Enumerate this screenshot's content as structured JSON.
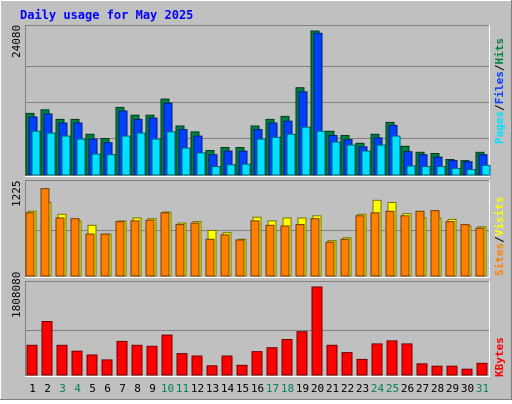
{
  "colors": {
    "background": "#c0c0c0",
    "title": "#0000ff",
    "hits": "#008040",
    "files": "#0040ff",
    "pages": "#00e0ff",
    "visits": "#ffff00",
    "sites": "#ff8000",
    "kbytes": "#ff0000",
    "weekend_day": "#00805c"
  },
  "chart_data": [
    {
      "type": "bar",
      "title": "Daily usage for May 2025",
      "ymax_label": "24080",
      "legend": [
        "Pages",
        "Files",
        "Hits"
      ],
      "categories": [
        "1",
        "2",
        "3",
        "4",
        "5",
        "6",
        "7",
        "8",
        "9",
        "10",
        "11",
        "12",
        "13",
        "14",
        "15",
        "16",
        "17",
        "18",
        "19",
        "20",
        "21",
        "22",
        "23",
        "24",
        "25",
        "26",
        "27",
        "28",
        "29",
        "30",
        "31"
      ],
      "weekend_days": [
        "3",
        "4",
        "10",
        "11",
        "17",
        "18",
        "24",
        "25",
        "31"
      ],
      "ylim": [
        0,
        24080
      ],
      "series": [
        {
          "name": "Hits",
          "values": [
            10300,
            10900,
            9300,
            9300,
            6800,
            6100,
            11300,
            10000,
            10000,
            12700,
            8200,
            7200,
            4100,
            4600,
            4600,
            8200,
            9300,
            9800,
            14600,
            24080,
            7300,
            6600,
            5300,
            6800,
            8800,
            4800,
            3800,
            3600,
            2600,
            2400,
            3800
          ]
        },
        {
          "name": "Files",
          "values": [
            9700,
            10200,
            8700,
            8700,
            6000,
            5400,
            10700,
            9300,
            9500,
            12000,
            7600,
            6500,
            3400,
            4000,
            4000,
            7600,
            8700,
            9000,
            13900,
            23700,
            6600,
            5900,
            4700,
            6200,
            8300,
            3900,
            3400,
            3000,
            2400,
            2200,
            3400
          ]
        },
        {
          "name": "Pages",
          "values": [
            7300,
            7000,
            6500,
            6000,
            3500,
            3400,
            6500,
            7000,
            6000,
            7200,
            4500,
            3700,
            1400,
            1700,
            1800,
            6000,
            6300,
            6800,
            8000,
            7300,
            5500,
            5000,
            4000,
            5000,
            6500,
            1500,
            1400,
            1400,
            1100,
            900,
            1600
          ]
        }
      ]
    },
    {
      "type": "bar",
      "ymax_label": "1225",
      "legend": [
        "Sites",
        "Visits"
      ],
      "categories": [
        "1",
        "2",
        "3",
        "4",
        "5",
        "6",
        "7",
        "8",
        "9",
        "10",
        "11",
        "12",
        "13",
        "14",
        "15",
        "16",
        "17",
        "18",
        "19",
        "20",
        "21",
        "22",
        "23",
        "24",
        "25",
        "26",
        "27",
        "28",
        "29",
        "30",
        "31"
      ],
      "ylim": [
        0,
        1225
      ],
      "series": [
        {
          "name": "Visits",
          "values": [
            880,
            1000,
            840,
            750,
            690,
            570,
            750,
            790,
            780,
            870,
            720,
            740,
            620,
            590,
            500,
            800,
            750,
            790,
            790,
            820,
            480,
            520,
            840,
            1030,
            1000,
            850,
            790,
            790,
            770,
            680,
            670
          ]
        },
        {
          "name": "Sites",
          "values": [
            860,
            1190,
            790,
            780,
            570,
            570,
            740,
            750,
            760,
            860,
            700,
            720,
            500,
            560,
            490,
            750,
            690,
            680,
            700,
            780,
            460,
            500,
            820,
            860,
            880,
            820,
            880,
            890,
            740,
            700,
            650
          ]
        }
      ]
    },
    {
      "type": "bar",
      "ymax_label": "1808080",
      "legend": [
        "KBytes"
      ],
      "categories": [
        "1",
        "2",
        "3",
        "4",
        "5",
        "6",
        "7",
        "8",
        "9",
        "10",
        "11",
        "12",
        "13",
        "14",
        "15",
        "16",
        "17",
        "18",
        "19",
        "20",
        "21",
        "22",
        "23",
        "24",
        "25",
        "26",
        "27",
        "28",
        "29",
        "30",
        "31"
      ],
      "ylim": [
        0,
        1808080
      ],
      "series": [
        {
          "name": "KBytes",
          "values": [
            610000,
            1100000,
            610000,
            490000,
            410000,
            310000,
            690000,
            610000,
            590000,
            820000,
            440000,
            390000,
            190000,
            390000,
            200000,
            480000,
            560000,
            730000,
            890000,
            1808080,
            610000,
            460000,
            320000,
            640000,
            700000,
            640000,
            230000,
            180000,
            180000,
            120000,
            240000
          ]
        }
      ]
    }
  ]
}
